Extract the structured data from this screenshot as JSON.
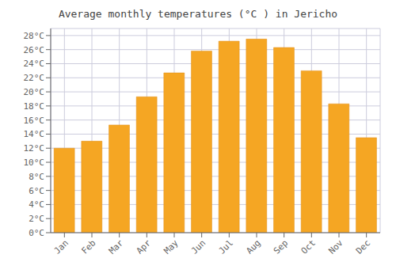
{
  "chart_data": {
    "type": "bar",
    "title": "Average monthly temperatures (°C ) in Jericho",
    "categories": [
      "Jan",
      "Feb",
      "Mar",
      "Apr",
      "May",
      "Jun",
      "Jul",
      "Aug",
      "Sep",
      "Oct",
      "Nov",
      "Dec"
    ],
    "values": [
      12.0,
      13.0,
      15.3,
      19.3,
      22.7,
      25.8,
      27.2,
      27.5,
      26.3,
      23.0,
      18.3,
      13.5
    ],
    "color": "#F5A623",
    "ylim": [
      0,
      29
    ],
    "yticks": [
      {
        "value": 0,
        "label": "0°C"
      },
      {
        "value": 2,
        "label": "2°C"
      },
      {
        "value": 4,
        "label": "4°C"
      },
      {
        "value": 6,
        "label": "6°C"
      },
      {
        "value": 8,
        "label": "8°C"
      },
      {
        "value": 10,
        "label": "10°C"
      },
      {
        "value": 12,
        "label": "12°C"
      },
      {
        "value": 14,
        "label": "14°C"
      },
      {
        "value": 16,
        "label": "16°C"
      },
      {
        "value": 18,
        "label": "18°C"
      },
      {
        "value": 20,
        "label": "20°C"
      },
      {
        "value": 22,
        "label": "22°C"
      },
      {
        "value": 24,
        "label": "24°C"
      },
      {
        "value": 26,
        "label": "26°C"
      },
      {
        "value": 28,
        "label": "28°C"
      }
    ],
    "grid": true
  }
}
